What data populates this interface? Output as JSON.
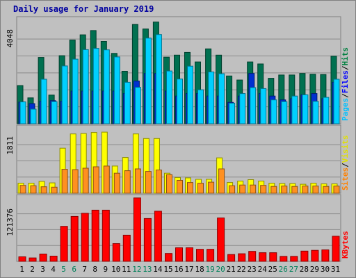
{
  "title": "Daily usage for January 2019",
  "chart_data": {
    "type": "bar",
    "categories": [
      "1",
      "2",
      "3",
      "4",
      "5",
      "6",
      "7",
      "8",
      "9",
      "10",
      "11",
      "12",
      "13",
      "14",
      "15",
      "16",
      "17",
      "18",
      "19",
      "20",
      "21",
      "22",
      "23",
      "24",
      "25",
      "26",
      "27",
      "28",
      "29",
      "30",
      "31"
    ],
    "weekend_days": [
      "5",
      "6",
      "12",
      "13",
      "19",
      "20",
      "26",
      "27"
    ],
    "panels": [
      {
        "id": "hits-files-pages",
        "max_label": "4048",
        "ymax": 4048,
        "side_labels": [
          {
            "text": "Hits",
            "color": "#008040"
          },
          {
            "text": "Files",
            "color": "#0000ff"
          },
          {
            "text": "Pages",
            "color": "#00c0ff"
          }
        ],
        "series": [
          {
            "name": "Hits",
            "color": "#007050",
            "values": [
              1520,
              1030,
              2640,
              1140,
              2710,
              3330,
              3540,
              3710,
              3280,
              2800,
              2090,
              3950,
              3770,
              4048,
              2650,
              2730,
              2840,
              2460,
              2980,
              2730,
              1900,
              1740,
              2460,
              2380,
              1810,
              1940,
              1940,
              2000,
              1970,
              1960,
              2690
            ]
          },
          {
            "name": "Files",
            "color": "#0030d0",
            "values": [
              860,
              800,
              900,
              920,
              900,
              1300,
              1300,
              1300,
              1300,
              1300,
              1200,
              1700,
              2000,
              2000,
              1300,
              1100,
              1200,
              1200,
              1100,
              1100,
              850,
              1100,
              2000,
              1200,
              1100,
              950,
              1000,
              1150,
              1200,
              1000,
              1650
            ]
          },
          {
            "name": "Pages",
            "color": "#00d0ff",
            "values": [
              870,
              580,
              1770,
              880,
              2300,
              2570,
              2950,
              3000,
              2940,
              2660,
              1650,
              1450,
              3410,
              3550,
              2100,
              1780,
              2290,
              1350,
              2060,
              1990,
              820,
              1200,
              1440,
              1400,
              950,
              880,
              1100,
              1150,
              890,
              1050,
              1770
            ]
          }
        ]
      },
      {
        "id": "visits-sites",
        "max_label": "1811",
        "ymax": 1811,
        "side_labels": [
          {
            "text": "Visits",
            "color": "#e0e000"
          },
          {
            "text": "Sites",
            "color": "#ff8000"
          }
        ],
        "series": [
          {
            "name": "Visits",
            "color": "#ffff00",
            "values": [
              280,
              280,
              330,
              290,
              1260,
              1660,
              1670,
              1700,
              1710,
              760,
              1000,
              1660,
              1530,
              1530,
              560,
              440,
              430,
              390,
              390,
              990,
              300,
              340,
              380,
              340,
              280,
              270,
              270,
              250,
              280,
              260,
              260
            ]
          },
          {
            "name": "Sites",
            "color": "#ff9020",
            "values": [
              220,
              210,
              180,
              170,
              670,
              660,
              700,
              740,
              760,
              560,
              630,
              680,
              610,
              650,
              520,
              360,
              300,
              280,
              310,
              680,
              210,
              230,
              230,
              220,
              190,
              200,
              190,
              200,
              200,
              190,
              200
            ]
          }
        ]
      },
      {
        "id": "kbytes",
        "max_label": "121376",
        "ymax": 121376,
        "side_labels": [
          {
            "text": "KBytes",
            "color": "#ff0000"
          }
        ],
        "series": [
          {
            "name": "KBytes",
            "color": "#ff0000",
            "values": [
              8700,
              6500,
              14000,
              10000,
              67000,
              86000,
              92000,
              98000,
              98000,
              34000,
              50000,
              121376,
              82000,
              96000,
              15000,
              26000,
              26000,
              23000,
              23000,
              83000,
              13000,
              14500,
              19000,
              16500,
              16500,
              9500,
              9500,
              19500,
              21000,
              22000,
              48000
            ]
          }
        ]
      }
    ]
  }
}
